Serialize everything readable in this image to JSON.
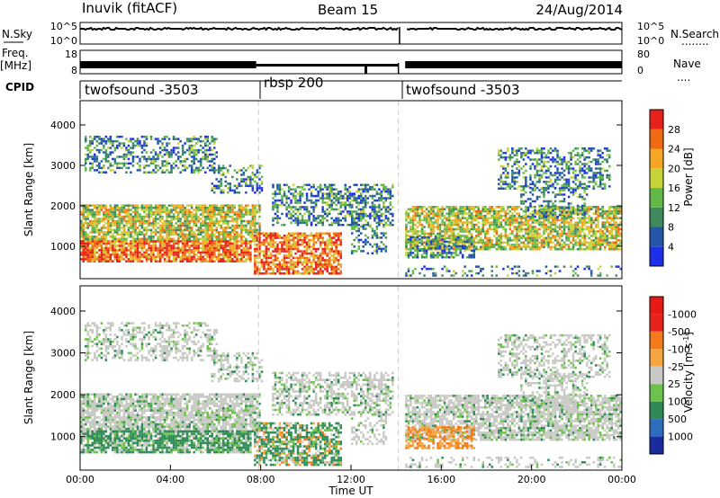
{
  "header": {
    "station": "Inuvik (fitACF)",
    "beam": "Beam 15",
    "date": "24/Aug/2014"
  },
  "panel_labels": {
    "nsky": "N.Sky",
    "nsearch": "N.Search",
    "freq": "Freq.",
    "freq_unit": "[MHz]",
    "nave": "Nave",
    "cpid": "CPID",
    "dots_search": "........",
    "dots_nave": "...."
  },
  "cpid_segments": [
    {
      "label": "twofsound -3503"
    },
    {
      "label": "rbsp 200"
    },
    {
      "label": "twofsound -3503"
    }
  ],
  "noise_axis": {
    "left_top": "10^5",
    "left_bottom": "10^0",
    "right_top": "10^5",
    "right_bottom": "10^0"
  },
  "freq_axis": {
    "left_top": "18",
    "left_bottom": "8",
    "right_top": "80",
    "right_bottom": "0"
  },
  "chart_data": [
    {
      "type": "heatmap",
      "title": "",
      "xlabel": "",
      "ylabel": "Slant Range [km]",
      "xlim_hours": [
        0,
        24
      ],
      "ylim": [
        200,
        4600
      ],
      "y_ticks": [
        "1000",
        "2000",
        "3000",
        "4000"
      ],
      "colorbar": {
        "label": "Power [dB]",
        "ticks": [
          "4",
          "8",
          "12",
          "16",
          "20",
          "24",
          "28"
        ],
        "colors": [
          "#1d2fe8",
          "#2457a8",
          "#3e8a5e",
          "#63b84a",
          "#c6d43a",
          "#f5a623",
          "#f06a14",
          "#e8211a"
        ]
      }
    },
    {
      "type": "heatmap",
      "title": "",
      "xlabel": "Time UT",
      "ylabel": "Slant Range [km]",
      "xlim_hours": [
        0,
        24
      ],
      "ylim": [
        200,
        4600
      ],
      "x_ticks": [
        "00:00",
        "04:00",
        "08:00",
        "12:00",
        "16:00",
        "20:00",
        "00:00"
      ],
      "y_ticks": [
        "1000",
        "2000",
        "3000",
        "4000"
      ],
      "colorbar": {
        "label": "Velocity [m s",
        "label_sup": "-1",
        "label_end": "]",
        "ticks": [
          "1000",
          "500",
          "100",
          "25",
          "-25",
          "-100",
          "-500",
          "-1000"
        ],
        "colors": [
          "#1a2ba0",
          "#2c6fbf",
          "#2e8b57",
          "#6cc24a",
          "#c8c8c4",
          "#f6a640",
          "#f27a1a",
          "#e8231c",
          "#e81a14"
        ]
      }
    }
  ]
}
